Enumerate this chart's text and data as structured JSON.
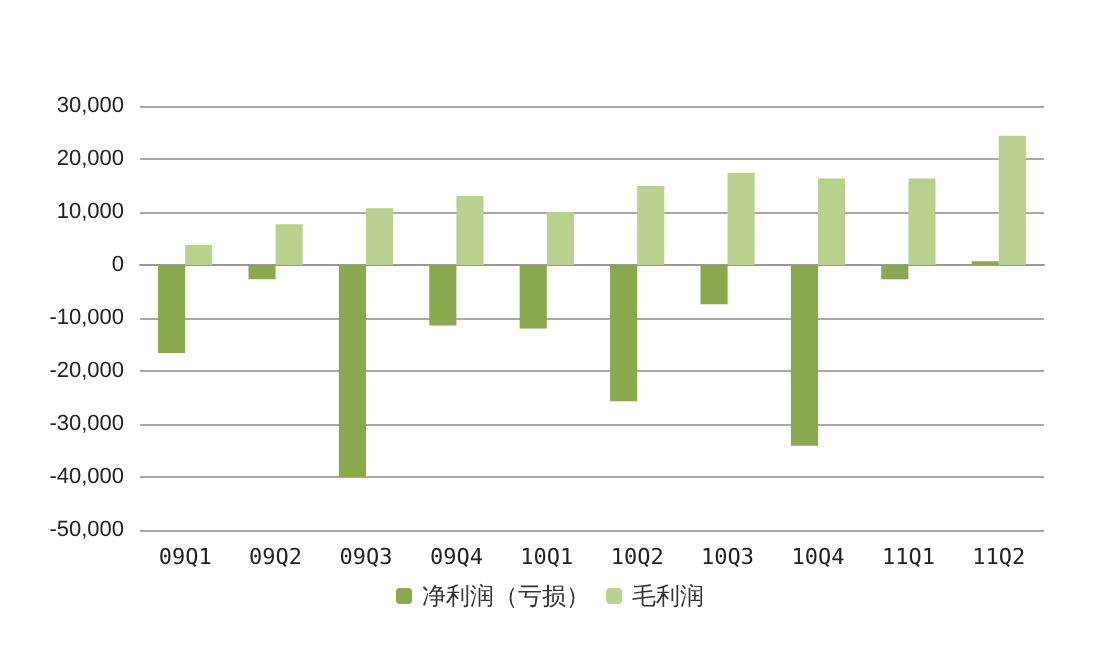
{
  "chart_data": {
    "type": "bar",
    "categories": [
      "09Q1",
      "09Q2",
      "09Q3",
      "09Q4",
      "10Q1",
      "10Q2",
      "10Q3",
      "10Q4",
      "11Q1",
      "11Q2"
    ],
    "series": [
      {
        "name": "净利润（亏损）",
        "color": "#8aa84e",
        "values": [
          -16600,
          -2700,
          -40000,
          -11400,
          -12000,
          -25700,
          -7400,
          -34100,
          -2700,
          700
        ]
      },
      {
        "name": "毛利润",
        "color": "#b9d08f",
        "values": [
          3800,
          7700,
          10700,
          13000,
          10000,
          14900,
          17400,
          16300,
          16300,
          24400
        ]
      }
    ],
    "ylim": [
      -50000,
      30000
    ],
    "yticks": [
      {
        "value": -50000,
        "label": "-50,000"
      },
      {
        "value": -40000,
        "label": "-40,000"
      },
      {
        "value": -30000,
        "label": "-30,000"
      },
      {
        "value": -20000,
        "label": "-20,000"
      },
      {
        "value": -10000,
        "label": "-10,000"
      },
      0,
      {
        "value": 10000,
        "label": "10,000"
      },
      {
        "value": 20000,
        "label": "20,000"
      },
      {
        "value": 30000,
        "label": "30,000"
      }
    ],
    "grid": "y",
    "legend": "bottom"
  }
}
